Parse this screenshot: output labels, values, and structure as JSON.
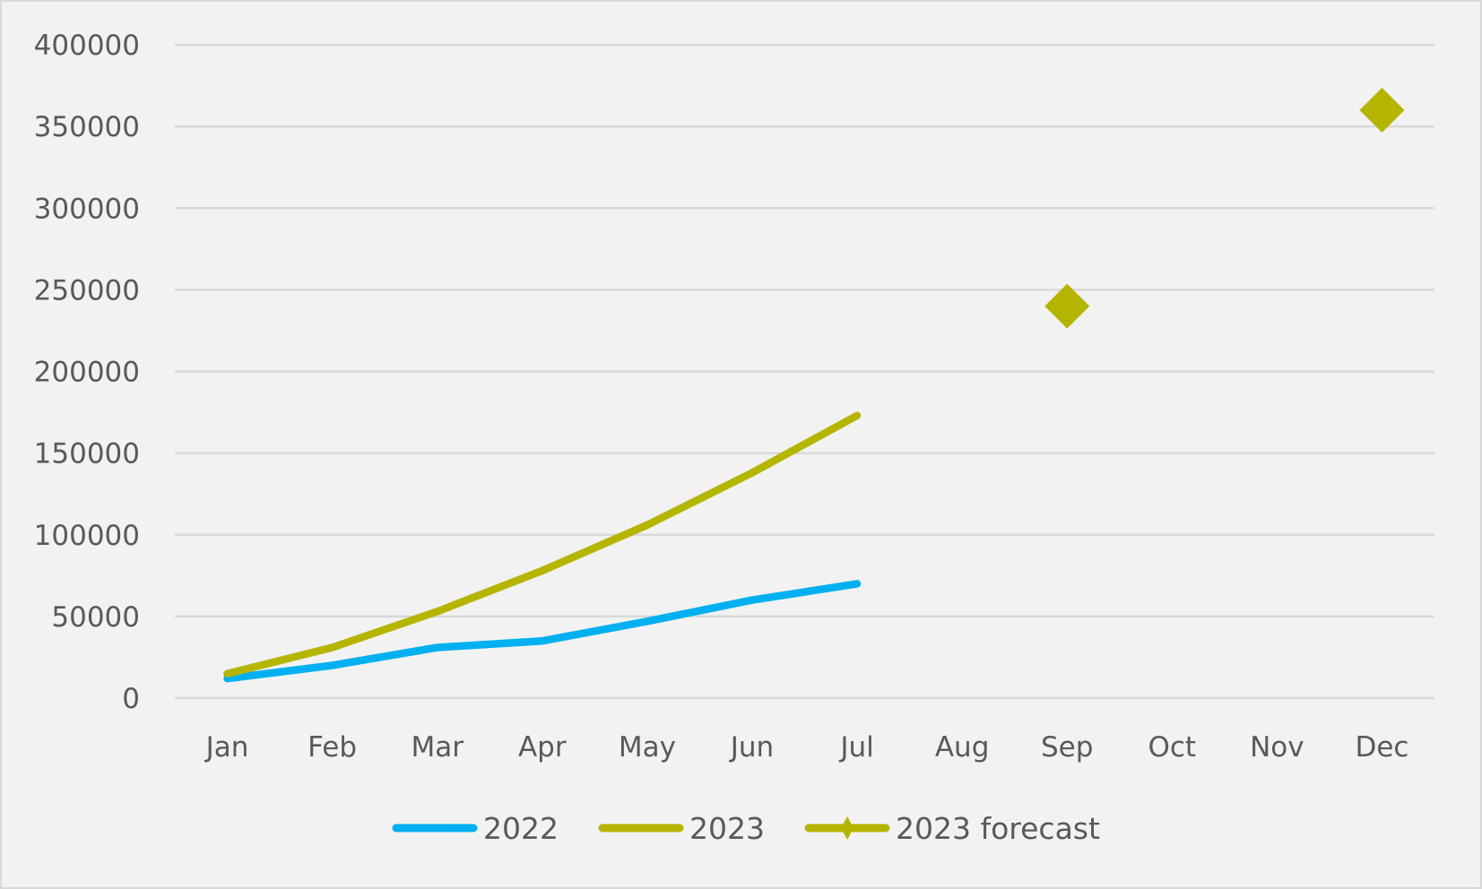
{
  "chart_data": {
    "type": "line",
    "title": "",
    "xlabel": "",
    "ylabel": "",
    "categories": [
      "Jan",
      "Feb",
      "Mar",
      "Apr",
      "May",
      "Jun",
      "Jul",
      "Aug",
      "Sep",
      "Oct",
      "Nov",
      "Dec"
    ],
    "ylim": [
      0,
      400000
    ],
    "yticks": [
      0,
      50000,
      100000,
      150000,
      200000,
      250000,
      300000,
      350000,
      400000
    ],
    "ytick_labels": [
      "0",
      "50000",
      "100000",
      "150000",
      "200000",
      "250000",
      "300000",
      "350000",
      "400000"
    ],
    "grid": true,
    "legend_position": "bottom",
    "series": [
      {
        "name": "2022",
        "color": "#00b0f0",
        "style": "line",
        "values": [
          12000,
          20000,
          31000,
          35000,
          47000,
          60000,
          70000,
          null,
          null,
          null,
          null,
          null
        ]
      },
      {
        "name": "2023",
        "color": "#b5b500",
        "style": "line",
        "values": [
          15000,
          31000,
          53000,
          78000,
          106000,
          138000,
          173000,
          null,
          null,
          null,
          null,
          null
        ]
      },
      {
        "name": "2023 forecast",
        "color": "#b5b500",
        "style": "marker-diamond",
        "values": [
          null,
          null,
          null,
          null,
          null,
          null,
          null,
          null,
          240000,
          null,
          null,
          360000
        ]
      }
    ]
  },
  "colors": {
    "background": "#f2f2f2",
    "border": "#d9d9d9",
    "gridline": "#d9d9d9",
    "text": "#595959"
  }
}
